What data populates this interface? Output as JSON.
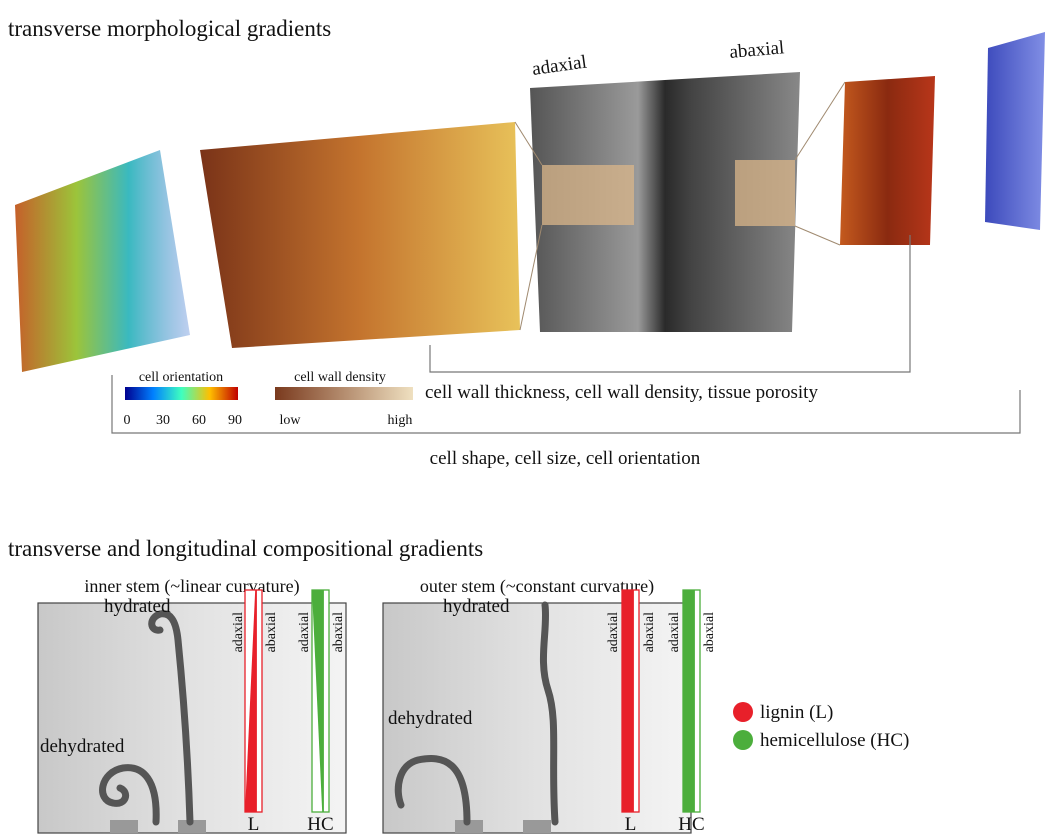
{
  "top": {
    "title": "transverse morphological gradients",
    "adaxial": "adaxial",
    "abaxial": "abaxial",
    "bracket_inner": "cell wall thickness, cell wall density, tissue porosity",
    "bracket_outer": "cell shape, cell size, cell orientation",
    "colorbar_orientation": {
      "title": "cell orientation",
      "ticks": [
        0,
        30,
        60,
        90
      ]
    },
    "colorbar_density": {
      "title": "cell wall density",
      "low": "low",
      "high": "high"
    }
  },
  "bottom": {
    "title": "transverse and longitudinal compositional gradients",
    "panels": [
      {
        "title": "inner stem (~linear curvature)",
        "hydrated": "hydrated",
        "dehydrated": "dehydrated",
        "bar_labels": [
          "adaxial",
          "abaxial",
          "adaxial",
          "abaxial"
        ],
        "bars": [
          "L",
          "HC"
        ]
      },
      {
        "title": "outer stem (~constant curvature)",
        "hydrated": "hydrated",
        "dehydrated": "dehydrated",
        "bar_labels": [
          "adaxial",
          "abaxial",
          "adaxial",
          "abaxial"
        ],
        "bars": [
          "L",
          "HC"
        ]
      }
    ],
    "legend": [
      {
        "label": "lignin (L)",
        "color": "#e8202a"
      },
      {
        "label": "hemicellulose (HC)",
        "color": "#4cae3c"
      }
    ]
  }
}
